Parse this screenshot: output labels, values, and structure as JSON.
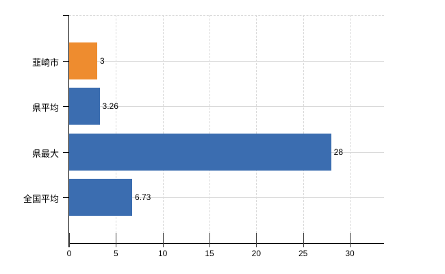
{
  "chart_data": {
    "type": "bar",
    "orientation": "horizontal",
    "categories": [
      "韮崎市",
      "県平均",
      "県最大",
      "全国平均"
    ],
    "values": [
      3,
      3.26,
      28,
      6.73
    ],
    "value_labels": [
      "3",
      "3.26",
      "28",
      "6.73"
    ],
    "series": [
      {
        "name": "値",
        "values": [
          3,
          3.26,
          28,
          6.73
        ]
      }
    ],
    "bar_colors": [
      "#ee8c2f",
      "#3b6db0",
      "#3b6db0",
      "#3b6db0"
    ],
    "xticks": [
      0,
      5,
      10,
      15,
      20,
      25,
      30
    ],
    "xtick_labels": [
      "0",
      "5",
      "10",
      "15",
      "20",
      "25",
      "30"
    ],
    "xlim": [
      0,
      33.66
    ],
    "grid": true,
    "legend": false,
    "title": "",
    "xlabel": "",
    "ylabel": ""
  },
  "colors": {
    "bar_blue": "#3b6db0",
    "bar_orange": "#ee8c2f",
    "gridline": "#d9d9d9",
    "axis": "#000000",
    "text": "#000000",
    "background": "#ffffff"
  }
}
